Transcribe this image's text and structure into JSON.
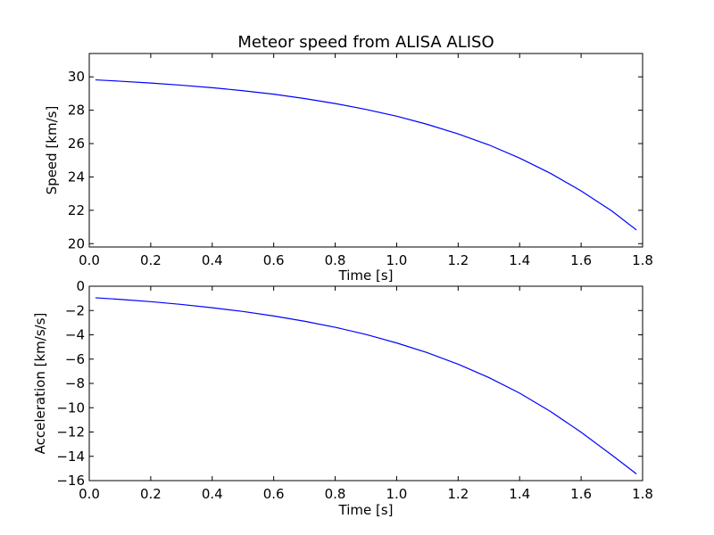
{
  "title": "Meteor speed from  ALISA ALISO",
  "colors": {
    "line": "#0000ff",
    "axes": "#000000",
    "background": "#ffffff"
  },
  "chart_data": [
    {
      "type": "line",
      "xlabel": "Time [s]",
      "ylabel": "Speed [km/s]",
      "xlim": [
        0.0,
        1.8
      ],
      "ylim": [
        19.8,
        31.4
      ],
      "xticks": [
        0.0,
        0.2,
        0.4,
        0.6,
        0.8,
        1.0,
        1.2,
        1.4,
        1.6,
        1.8
      ],
      "xtick_labels": [
        "0.0",
        "0.2",
        "0.4",
        "0.6",
        "0.8",
        "1.0",
        "1.2",
        "1.4",
        "1.6",
        "1.8"
      ],
      "yticks": [
        20,
        22,
        24,
        26,
        28,
        30
      ],
      "ytick_labels": [
        "20",
        "22",
        "24",
        "26",
        "28",
        "30"
      ],
      "grid": false,
      "series": [
        {
          "x": [
            0.02,
            0.1,
            0.2,
            0.3,
            0.4,
            0.5,
            0.6,
            0.7,
            0.8,
            0.9,
            1.0,
            1.1,
            1.2,
            1.3,
            1.4,
            1.5,
            1.6,
            1.7,
            1.78
          ],
          "y": [
            29.82,
            29.74,
            29.63,
            29.5,
            29.35,
            29.17,
            28.96,
            28.7,
            28.4,
            28.05,
            27.64,
            27.15,
            26.58,
            25.92,
            25.13,
            24.22,
            23.16,
            21.96,
            20.82
          ]
        }
      ]
    },
    {
      "type": "line",
      "xlabel": "Time [s]",
      "ylabel": "Acceleration [km/s/s]",
      "xlim": [
        0.0,
        1.8
      ],
      "ylim": [
        -16,
        0
      ],
      "xticks": [
        0.0,
        0.2,
        0.4,
        0.6,
        0.8,
        1.0,
        1.2,
        1.4,
        1.6,
        1.8
      ],
      "xtick_labels": [
        "0.0",
        "0.2",
        "0.4",
        "0.6",
        "0.8",
        "1.0",
        "1.2",
        "1.4",
        "1.6",
        "1.8"
      ],
      "yticks": [
        0,
        -2,
        -4,
        -6,
        -8,
        -10,
        -12,
        -14,
        -16
      ],
      "ytick_labels": [
        "0",
        "−2",
        "−4",
        "−6",
        "−8",
        "−10",
        "−12",
        "−14",
        "−16"
      ],
      "grid": false,
      "series": [
        {
          "x": [
            0.02,
            0.1,
            0.2,
            0.3,
            0.4,
            0.5,
            0.6,
            0.7,
            0.8,
            0.9,
            1.0,
            1.1,
            1.2,
            1.3,
            1.4,
            1.5,
            1.6,
            1.7,
            1.78
          ],
          "y": [
            -0.95,
            -1.08,
            -1.27,
            -1.5,
            -1.77,
            -2.08,
            -2.45,
            -2.88,
            -3.38,
            -3.97,
            -4.67,
            -5.47,
            -6.42,
            -7.52,
            -8.8,
            -10.3,
            -12.02,
            -13.9,
            -15.45
          ]
        }
      ]
    }
  ]
}
